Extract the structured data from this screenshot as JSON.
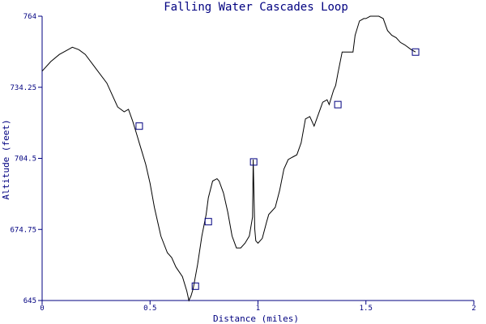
{
  "chart_data": {
    "type": "line",
    "title": "Falling Water Cascades Loop",
    "xlabel": "Distance (miles)",
    "ylabel": "Altitude (feet)",
    "xlim": [
      0,
      2
    ],
    "ylim": [
      645,
      764
    ],
    "x_ticks": [
      {
        "value": 0,
        "label": "0"
      },
      {
        "value": 0.5,
        "label": "0.5"
      },
      {
        "value": 1,
        "label": "1"
      },
      {
        "value": 1.5,
        "label": "1.5"
      },
      {
        "value": 2,
        "label": "2"
      }
    ],
    "y_ticks": [
      {
        "value": 645,
        "label": "645"
      },
      {
        "value": 674.75,
        "label": "674.75"
      },
      {
        "value": 704.5,
        "label": "704.5"
      },
      {
        "value": 734.25,
        "label": "734.25"
      },
      {
        "value": 764,
        "label": "764"
      }
    ],
    "grid": false,
    "line_color": "#000000",
    "axis_color": "#000080",
    "marker_color": "#000080",
    "series": [
      {
        "x": [
          0,
          0.04,
          0.08,
          0.12,
          0.14,
          0.17,
          0.2,
          0.25,
          0.3,
          0.35,
          0.38,
          0.4,
          0.42,
          0.43,
          0.44,
          0.45,
          0.46,
          0.48,
          0.5,
          0.52,
          0.55,
          0.58,
          0.6,
          0.62,
          0.65,
          0.67,
          0.68,
          0.69,
          0.7,
          0.72,
          0.74,
          0.76,
          0.77,
          0.79,
          0.81,
          0.82,
          0.84,
          0.86,
          0.88,
          0.9,
          0.92,
          0.94,
          0.96,
          0.975,
          0.978,
          0.985,
          0.99,
          1.0,
          1.02,
          1.04,
          1.05,
          1.08,
          1.1,
          1.12,
          1.14,
          1.16,
          1.18,
          1.2,
          1.22,
          1.24,
          1.26,
          1.28,
          1.3,
          1.32,
          1.33,
          1.35,
          1.36,
          1.37,
          1.39,
          1.42,
          1.44,
          1.45,
          1.47,
          1.49,
          1.5,
          1.52,
          1.54,
          1.56,
          1.58,
          1.6,
          1.62,
          1.64,
          1.66,
          1.68,
          1.71,
          1.73
        ],
        "y": [
          741,
          745,
          748,
          750,
          751,
          750,
          748,
          742,
          736,
          726,
          724,
          725,
          720,
          717,
          714,
          711,
          708,
          702,
          694,
          684,
          672,
          665,
          663,
          659,
          655,
          649,
          645,
          647,
          650,
          660,
          672,
          681,
          688,
          695,
          696,
          695,
          690,
          682,
          672,
          667,
          667,
          669,
          672,
          680,
          704,
          675,
          670,
          669,
          671,
          678,
          681,
          684,
          691,
          700,
          704,
          705,
          706,
          711,
          721,
          722,
          718,
          723,
          728,
          729,
          727,
          733,
          735,
          740,
          749,
          749,
          749,
          756,
          762,
          763,
          763,
          764,
          764,
          764,
          763,
          758,
          756,
          755,
          753,
          752,
          750,
          749
        ],
        "markers": [
          {
            "x": 0.45,
            "y": 718
          },
          {
            "x": 0.71,
            "y": 651
          },
          {
            "x": 0.77,
            "y": 678
          },
          {
            "x": 0.98,
            "y": 703
          },
          {
            "x": 1.37,
            "y": 727
          },
          {
            "x": 1.73,
            "y": 749
          }
        ]
      }
    ]
  }
}
